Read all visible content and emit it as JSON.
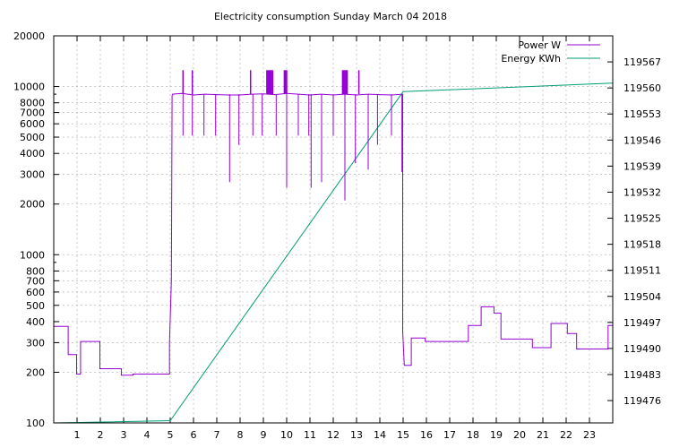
{
  "chart_data": {
    "type": "line",
    "title": "Electricity consumption Sunday March 04 2018",
    "xlabel": "",
    "ylabel": "",
    "y2label": "",
    "xlim": [
      0,
      24
    ],
    "ylim": [
      100,
      20000
    ],
    "yscale": "log",
    "y2lim": [
      119470,
      119574
    ],
    "grid": true,
    "legend_position": "top-right",
    "x_ticks": [
      "1",
      "2",
      "3",
      "4",
      "5",
      "6",
      "7",
      "8",
      "9",
      "10",
      "11",
      "12",
      "13",
      "14",
      "15",
      "16",
      "17",
      "18",
      "19",
      "20",
      "21",
      "22",
      "23"
    ],
    "y_ticks": [
      {
        "value": 100,
        "label": "100"
      },
      {
        "value": 200,
        "label": "200"
      },
      {
        "value": 300,
        "label": "300"
      },
      {
        "value": 400,
        "label": "400"
      },
      {
        "value": 500,
        "label": "500"
      },
      {
        "value": 600,
        "label": "600"
      },
      {
        "value": 700,
        "label": "700"
      },
      {
        "value": 800,
        "label": "800"
      },
      {
        "value": 1000,
        "label": "1000"
      },
      {
        "value": 2000,
        "label": "2000"
      },
      {
        "value": 3000,
        "label": "3000"
      },
      {
        "value": 4000,
        "label": "4000"
      },
      {
        "value": 5000,
        "label": "5000"
      },
      {
        "value": 6000,
        "label": "6000"
      },
      {
        "value": 7000,
        "label": "7000"
      },
      {
        "value": 8000,
        "label": "8000"
      },
      {
        "value": 10000,
        "label": "10000"
      },
      {
        "value": 20000,
        "label": "20000"
      }
    ],
    "y2_ticks": [
      "119476",
      "119483",
      "119490",
      "119497",
      "119504",
      "119511",
      "119518",
      "119525",
      "119532",
      "119539",
      "119546",
      "119553",
      "119560",
      "119567"
    ],
    "series": [
      {
        "name": "Power W",
        "color": "#9400d3",
        "axis": "y",
        "x": [
          0,
          0.62,
          0.62,
          0.98,
          0.98,
          1.15,
          1.15,
          1.35,
          1.35,
          1.98,
          1.98,
          2.08,
          2.08,
          2.9,
          2.9,
          3.4,
          3.4,
          4.02,
          4.02,
          4.97,
          4.97,
          5.05,
          5.08,
          5.1,
          5.5,
          6.0,
          6.5,
          7.0,
          7.5,
          8.0,
          8.5,
          9.0,
          9.5,
          10.0,
          10.5,
          11.0,
          11.5,
          12.0,
          12.5,
          13.0,
          13.5,
          14.0,
          14.5,
          14.98,
          14.98,
          15.05,
          15.05,
          15.35,
          15.35,
          15.95,
          15.95,
          17.8,
          17.8,
          18.35,
          18.35,
          18.9,
          18.9,
          19.2,
          19.2,
          20.55,
          20.55,
          21.35,
          21.35,
          22.05,
          22.05,
          22.45,
          22.45,
          23.8,
          23.8,
          24
        ],
        "y": [
          375,
          375,
          255,
          255,
          195,
          195,
          305,
          305,
          305,
          305,
          210,
          210,
          210,
          210,
          192,
          192,
          195,
          195,
          195,
          195,
          300,
          700,
          8800,
          9000,
          9100,
          8900,
          9000,
          8950,
          8900,
          8900,
          9000,
          9050,
          8950,
          9100,
          9000,
          8900,
          9000,
          8900,
          9000,
          8900,
          9000,
          8950,
          8900,
          9000,
          350,
          220,
          220,
          220,
          320,
          320,
          305,
          305,
          380,
          380,
          490,
          490,
          450,
          450,
          315,
          315,
          280,
          280,
          390,
          390,
          340,
          340,
          275,
          275,
          380,
          380
        ]
      },
      {
        "name": "Energy KWh",
        "color": "#009e73",
        "axis": "y2",
        "x": [
          0,
          5.0,
          15.0,
          24
        ],
        "y": [
          119470.0,
          119470.6,
          119559.0,
          119561.3
        ]
      }
    ],
    "power_spikes": {
      "down": [
        [
          5.55,
          5100
        ],
        [
          5.95,
          5100
        ],
        [
          6.45,
          5100
        ],
        [
          6.95,
          5100
        ],
        [
          7.55,
          2700
        ],
        [
          7.95,
          4500
        ],
        [
          8.55,
          5100
        ],
        [
          8.95,
          5100
        ],
        [
          9.55,
          5100
        ],
        [
          10.0,
          2500
        ],
        [
          10.5,
          5100
        ],
        [
          10.95,
          5100
        ],
        [
          11.05,
          2500
        ],
        [
          11.5,
          2700
        ],
        [
          12.0,
          5100
        ],
        [
          12.5,
          2100
        ],
        [
          12.95,
          3500
        ],
        [
          13.5,
          3200
        ],
        [
          13.9,
          4500
        ],
        [
          14.5,
          5100
        ],
        [
          14.95,
          3100
        ]
      ],
      "up": [
        [
          5.55,
          12500
        ],
        [
          5.95,
          12500
        ],
        [
          8.45,
          12500
        ],
        [
          9.15,
          12500
        ],
        [
          9.2,
          12500
        ],
        [
          9.25,
          12500
        ],
        [
          9.3,
          12500
        ],
        [
          9.35,
          12500
        ],
        [
          9.4,
          12500
        ],
        [
          9.9,
          12500
        ],
        [
          9.95,
          12500
        ],
        [
          10.0,
          12500
        ],
        [
          12.4,
          12500
        ],
        [
          12.45,
          12500
        ],
        [
          12.5,
          12500
        ],
        [
          12.55,
          12500
        ],
        [
          12.6,
          12500
        ],
        [
          13.1,
          12500
        ]
      ]
    }
  }
}
